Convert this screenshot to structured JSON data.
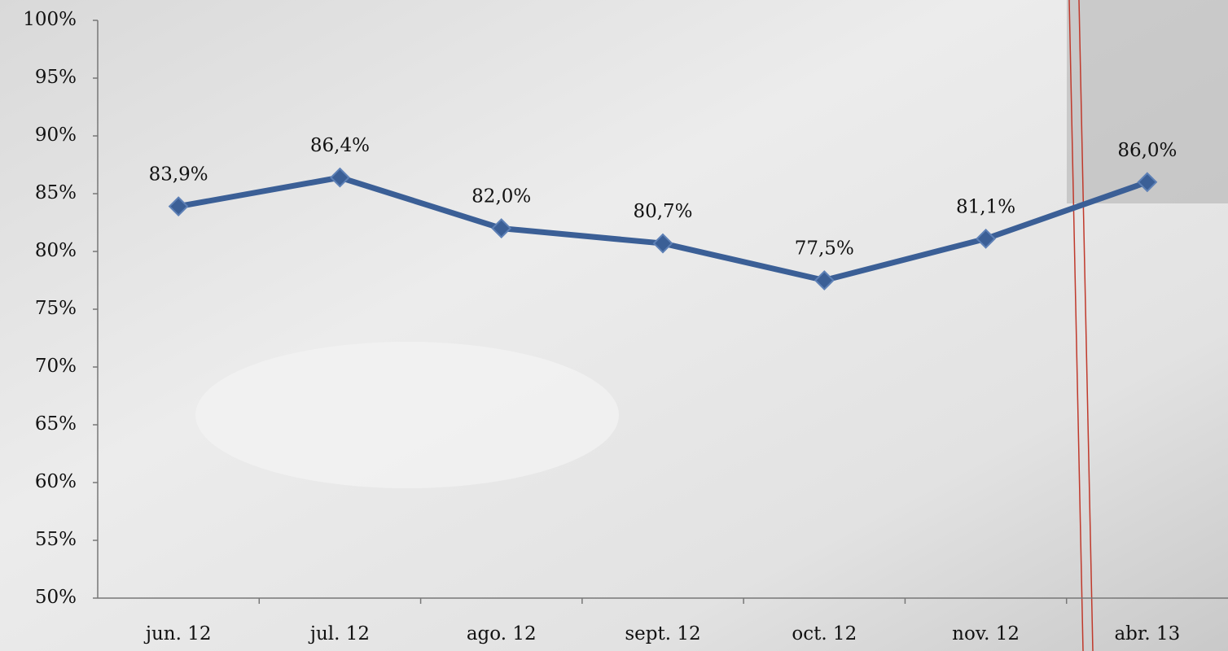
{
  "chart_data": {
    "type": "line",
    "categories": [
      "jun. 12",
      "jul. 12",
      "ago. 12",
      "sept. 12",
      "oct. 12",
      "nov. 12",
      "abr. 13"
    ],
    "series": [
      {
        "color": "#3b5f96",
        "values": [
          83.9,
          86.4,
          82.0,
          80.7,
          77.5,
          81.1,
          86.0
        ],
        "value_labels": [
          "83,9%",
          "86,4%",
          "82,0%",
          "80,7%",
          "77,5%",
          "81,1%",
          "86,0%"
        ]
      }
    ],
    "ylim": [
      50,
      100
    ],
    "yticks": [
      {
        "value": 50,
        "label": "50%"
      },
      {
        "value": 55,
        "label": "55%"
      },
      {
        "value": 60,
        "label": "60%"
      },
      {
        "value": 65,
        "label": "65%"
      },
      {
        "value": 70,
        "label": "70%"
      },
      {
        "value": 75,
        "label": "75%"
      },
      {
        "value": 80,
        "label": "80%"
      },
      {
        "value": 85,
        "label": "85%"
      },
      {
        "value": 90,
        "label": "90%"
      },
      {
        "value": 95,
        "label": "95%"
      },
      {
        "value": 100,
        "label": "100%"
      }
    ]
  }
}
